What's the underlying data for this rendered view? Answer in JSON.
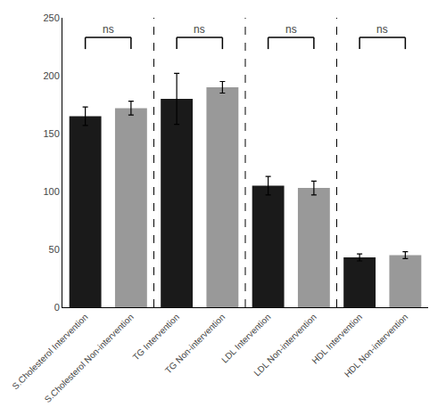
{
  "chart_data": {
    "type": "bar",
    "categories": [
      "S.Cholesterol Intervention",
      "S.Cholesterol Non-intervention",
      "TG Intervention",
      "TG Non-intervention",
      "LDL Intervention",
      "LDL Non-intervention",
      "HDL Intervention",
      "HDL Non-intervention"
    ],
    "values": [
      165,
      172,
      180,
      190,
      105,
      103,
      43,
      45
    ],
    "errors": [
      8,
      6,
      22,
      5,
      8,
      6,
      3,
      3
    ],
    "colors": [
      "#1a1a1a",
      "#999999",
      "#1a1a1a",
      "#999999",
      "#1a1a1a",
      "#999999",
      "#1a1a1a",
      "#999999"
    ],
    "ylim": [
      0,
      250
    ],
    "yticks": [
      0,
      50,
      100,
      150,
      200,
      250
    ],
    "grid": false,
    "annotations": [
      {
        "text": "ns",
        "from": "S.Cholesterol Intervention",
        "to": "S.Cholesterol Non-intervention",
        "y": 233,
        "bracket_bottom": 223
      },
      {
        "text": "ns",
        "from": "TG Intervention",
        "to": "TG Non-intervention",
        "y": 233,
        "bracket_bottom": 223
      },
      {
        "text": "ns",
        "from": "LDL Intervention",
        "to": "LDL Non-intervention",
        "y": 233,
        "bracket_bottom": 223
      },
      {
        "text": "ns",
        "from": "HDL Intervention",
        "to": "HDL Non-intervention",
        "y": 233,
        "bracket_bottom": 223
      }
    ]
  }
}
